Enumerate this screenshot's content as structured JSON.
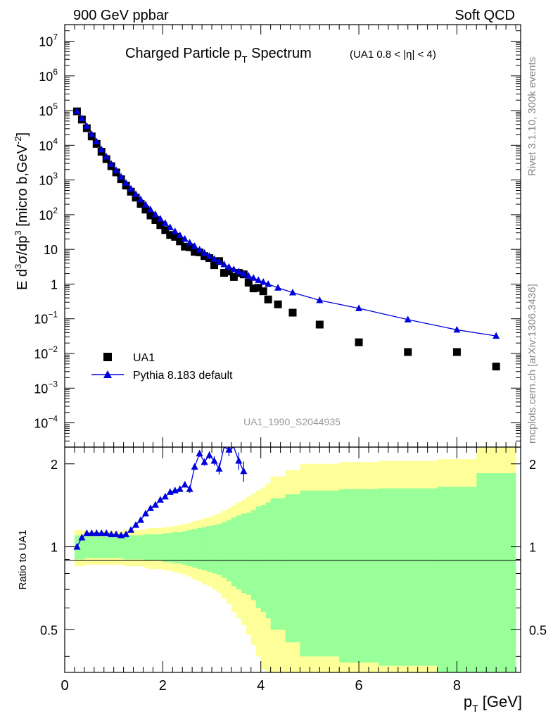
{
  "header": {
    "left": "900 GeV ppbar",
    "right": "Soft QCD"
  },
  "side_labels": {
    "rivet": "Rivet 3.1.10,  300k events",
    "mcplots": "mcplots.cern.ch [arXiv:1306.3436]"
  },
  "colors": {
    "data": "#000000",
    "mc": "#0000dd",
    "band_inner": "#99ff99",
    "band_outer": "#ffff99",
    "watermark": "#999999",
    "side_text": "#888888"
  },
  "chart_data": [
    {
      "type": "scatter",
      "panel": "main",
      "title": "Charged Particle p_T Spectrum",
      "title_parts": {
        "main": "Charged Particle p",
        "sub": "T",
        "tail": " Spectrum"
      },
      "subtitle": "(UA1 0.8 < |η| < 4)",
      "ylabel": "E d³σ/dp³ [micro b,GeV⁻²]",
      "ylabel_parts": [
        "E d",
        "3",
        "σ/dp",
        "3",
        " [micro b,GeV",
        "-2",
        "]"
      ],
      "yscale": "log",
      "xlim": [
        0,
        9.3
      ],
      "ylim": [
        2e-05,
        30000000
      ],
      "ytick_labels": [
        {
          "value": 10000000,
          "base": "10",
          "exp": "7"
        },
        {
          "value": 1000000,
          "base": "10",
          "exp": "6"
        },
        {
          "value": 100000,
          "base": "10",
          "exp": "5"
        },
        {
          "value": 10000,
          "base": "10",
          "exp": "4"
        },
        {
          "value": 1000,
          "base": "10",
          "exp": "3"
        },
        {
          "value": 100,
          "base": "10",
          "exp": "2"
        },
        {
          "value": 10,
          "base": "10",
          "exp": ""
        },
        {
          "value": 1,
          "base": "1",
          "exp": ""
        },
        {
          "value": 0.1,
          "base": "10",
          "exp": "−1"
        },
        {
          "value": 0.01,
          "base": "10",
          "exp": "−2"
        },
        {
          "value": 0.001,
          "base": "10",
          "exp": "−3"
        },
        {
          "value": 0.0001,
          "base": "10",
          "exp": "−4"
        }
      ],
      "legend_position": "lower-left",
      "watermark": "UA1_1990_S2044935",
      "series": [
        {
          "name": "UA1",
          "marker": "square",
          "x": [
            0.25,
            0.35,
            0.45,
            0.55,
            0.65,
            0.75,
            0.85,
            0.95,
            1.05,
            1.15,
            1.25,
            1.35,
            1.45,
            1.55,
            1.65,
            1.75,
            1.85,
            1.95,
            2.05,
            2.15,
            2.25,
            2.35,
            2.45,
            2.55,
            2.65,
            2.75,
            2.85,
            2.95,
            3.05,
            3.15,
            3.25,
            3.35,
            3.45,
            3.55,
            3.65,
            3.75,
            3.85,
            3.95,
            4.05,
            4.15,
            4.35,
            4.65,
            5.2,
            6.0,
            7.0,
            8.0,
            8.8
          ],
          "y": [
            95000,
            55000,
            31000,
            18000,
            11000,
            6500,
            4000,
            2500,
            1650,
            1050,
            690,
            460,
            310,
            205,
            140,
            95,
            70,
            50,
            36,
            26,
            23,
            17,
            12,
            11.5,
            8.5,
            8.2,
            6.4,
            5.6,
            3.5,
            4.6,
            2.1,
            2.3,
            1.6,
            2.1,
            1.9,
            1.1,
            0.75,
            0.78,
            0.62,
            0.36,
            0.26,
            0.15,
            0.068,
            0.021,
            0.011,
            0.011,
            0.0042
          ]
        },
        {
          "name": "Pythia 8.183 default",
          "marker": "triangle",
          "x": [
            0.25,
            0.35,
            0.45,
            0.55,
            0.65,
            0.75,
            0.85,
            0.95,
            1.05,
            1.15,
            1.25,
            1.35,
            1.45,
            1.55,
            1.65,
            1.75,
            1.85,
            1.95,
            2.05,
            2.15,
            2.25,
            2.35,
            2.45,
            2.55,
            2.65,
            2.75,
            2.85,
            2.95,
            3.05,
            3.15,
            3.25,
            3.35,
            3.45,
            3.55,
            3.65,
            3.75,
            3.85,
            3.95,
            4.05,
            4.15,
            4.35,
            4.65,
            5.2,
            6.0,
            7.0,
            8.0,
            8.8
          ],
          "y": [
            95000,
            60000,
            36000,
            21000,
            12800,
            7600,
            4700,
            2900,
            1900,
            1240,
            820,
            560,
            390,
            275,
            195,
            140,
            102,
            76,
            57,
            43,
            33,
            25.5,
            20,
            15.5,
            12.3,
            9.8,
            7.9,
            6.4,
            5.3,
            4.4,
            3.7,
            3.1,
            2.65,
            2.3,
            2.0,
            1.72,
            1.5,
            1.3,
            1.15,
            1.0,
            0.78,
            0.57,
            0.34,
            0.2,
            0.095,
            0.048,
            0.032
          ]
        }
      ]
    },
    {
      "type": "line",
      "panel": "ratio",
      "ylabel": "Ratio to UA1",
      "xlabel": "p_T [GeV]",
      "xlabel_parts": {
        "main": "p",
        "sub": "T",
        "tail": " [GeV]"
      },
      "xlim": [
        0,
        9.3
      ],
      "ylim": [
        0.35,
        2.3
      ],
      "xtick_labels": [
        "0",
        "2",
        "4",
        "6",
        "8"
      ],
      "xtick_values": [
        0,
        2,
        4,
        6,
        8
      ],
      "ytick_labels": [
        "0.5",
        "1",
        "2"
      ],
      "ytick_values": [
        0.5,
        1,
        2
      ],
      "bands": {
        "edges": [
          0.2,
          0.3,
          0.4,
          0.5,
          0.6,
          0.7,
          0.8,
          0.9,
          1.0,
          1.1,
          1.2,
          1.3,
          1.4,
          1.5,
          1.6,
          1.7,
          1.8,
          1.9,
          2.0,
          2.1,
          2.2,
          2.3,
          2.4,
          2.5,
          2.6,
          2.7,
          2.8,
          2.9,
          3.0,
          3.1,
          3.2,
          3.3,
          3.4,
          3.5,
          3.6,
          3.7,
          3.8,
          3.9,
          4.0,
          4.1,
          4.2,
          4.5,
          4.8,
          5.6,
          6.4,
          7.6,
          8.4,
          9.2
        ],
        "inner_up": [
          1.1,
          1.1,
          1.09,
          1.09,
          1.09,
          1.09,
          1.09,
          1.09,
          1.09,
          1.09,
          1.1,
          1.1,
          1.1,
          1.1,
          1.11,
          1.11,
          1.11,
          1.11,
          1.12,
          1.12,
          1.13,
          1.13,
          1.14,
          1.15,
          1.16,
          1.17,
          1.18,
          1.19,
          1.2,
          1.21,
          1.23,
          1.25,
          1.28,
          1.3,
          1.32,
          1.33,
          1.36,
          1.4,
          1.42,
          1.45,
          1.5,
          1.55,
          1.6,
          1.62,
          1.63,
          1.65,
          1.85
        ],
        "inner_dn": [
          0.9,
          0.9,
          0.91,
          0.91,
          0.91,
          0.91,
          0.91,
          0.91,
          0.91,
          0.91,
          0.9,
          0.9,
          0.9,
          0.9,
          0.89,
          0.89,
          0.89,
          0.89,
          0.88,
          0.88,
          0.87,
          0.87,
          0.86,
          0.85,
          0.84,
          0.83,
          0.82,
          0.81,
          0.8,
          0.79,
          0.77,
          0.75,
          0.72,
          0.7,
          0.68,
          0.67,
          0.64,
          0.6,
          0.58,
          0.55,
          0.5,
          0.45,
          0.4,
          0.38,
          0.37,
          0.35,
          0.3
        ],
        "outer_up": [
          1.15,
          1.15,
          1.14,
          1.14,
          1.14,
          1.14,
          1.14,
          1.14,
          1.14,
          1.14,
          1.15,
          1.15,
          1.15,
          1.15,
          1.16,
          1.17,
          1.17,
          1.17,
          1.18,
          1.18,
          1.19,
          1.2,
          1.21,
          1.22,
          1.24,
          1.25,
          1.27,
          1.28,
          1.3,
          1.32,
          1.35,
          1.38,
          1.42,
          1.45,
          1.48,
          1.52,
          1.56,
          1.6,
          1.64,
          1.7,
          1.8,
          1.9,
          2.0,
          2.03,
          2.05,
          2.08,
          2.4
        ],
        "outer_dn": [
          0.85,
          0.85,
          0.86,
          0.86,
          0.86,
          0.86,
          0.86,
          0.86,
          0.86,
          0.86,
          0.85,
          0.85,
          0.85,
          0.85,
          0.84,
          0.83,
          0.83,
          0.83,
          0.82,
          0.82,
          0.81,
          0.8,
          0.79,
          0.78,
          0.76,
          0.75,
          0.73,
          0.72,
          0.7,
          0.68,
          0.65,
          0.62,
          0.58,
          0.55,
          0.52,
          0.48,
          0.44,
          0.4,
          0.36,
          0.3,
          0.2,
          0.1,
          0.05,
          0.03,
          0.03,
          0.03,
          0.02
        ]
      },
      "series": [
        {
          "name": "Pythia 8.183 default / UA1",
          "x": [
            0.25,
            0.35,
            0.45,
            0.55,
            0.65,
            0.75,
            0.85,
            0.95,
            1.05,
            1.15,
            1.25,
            1.35,
            1.45,
            1.55,
            1.65,
            1.75,
            1.85,
            1.95,
            2.05,
            2.15,
            2.25,
            2.35,
            2.45,
            2.55,
            2.65,
            2.75,
            2.85,
            2.95,
            3.05,
            3.15,
            3.25,
            3.35,
            3.45,
            3.55,
            3.65
          ],
          "y": [
            1.0,
            1.08,
            1.12,
            1.12,
            1.12,
            1.12,
            1.12,
            1.11,
            1.11,
            1.1,
            1.11,
            1.15,
            1.2,
            1.25,
            1.32,
            1.38,
            1.42,
            1.48,
            1.52,
            1.58,
            1.6,
            1.62,
            1.68,
            1.62,
            1.95,
            2.18,
            2.03,
            2.15,
            2.05,
            1.92,
            2.6,
            2.25,
            2.5,
            2.05,
            1.88
          ],
          "yerr": [
            0,
            0,
            0,
            0,
            0,
            0,
            0,
            0,
            0,
            0,
            0,
            0,
            0,
            0,
            0,
            0,
            0,
            0,
            0.02,
            0.02,
            0.03,
            0.03,
            0.04,
            0.05,
            0.05,
            0.06,
            0.06,
            0.07,
            0.08,
            0.09,
            0.12,
            0.12,
            0.14,
            0.15,
            0.16
          ]
        }
      ]
    }
  ]
}
